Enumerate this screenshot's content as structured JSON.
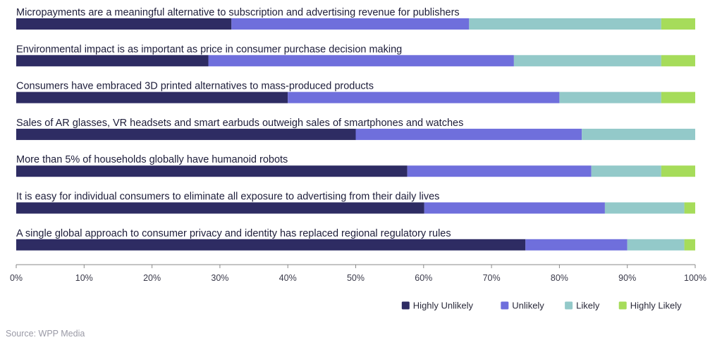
{
  "colors": {
    "highly_unlikely": "#2e2c63",
    "unlikely": "#6f6fdc",
    "likely": "#93c9c9",
    "highly_likely": "#a6dc5a",
    "axis": "#8a8a8a"
  },
  "source_text": "Source: WPP Media",
  "chart_data": {
    "type": "bar",
    "orientation": "horizontal",
    "stacked": true,
    "percent_scale": true,
    "categories": [
      "Micropayments are a meaningful alternative to subscription and advertising revenue for publishers",
      "Environmental impact is as important as price in consumer purchase decision making",
      "Consumers have embraced 3D printed alternatives to mass-produced products",
      "Sales of AR glasses, VR headsets and smart earbuds outweigh sales of smartphones and watches",
      "More than 5% of households globally have humanoid robots",
      "It is easy for individual consumers to eliminate all exposure to advertising from their daily lives",
      "A single global approach to consumer privacy and identity has replaced regional regulatory rules"
    ],
    "series": [
      {
        "name": "Highly Unlikely",
        "color_key": "highly_unlikely",
        "values": [
          31.7,
          28.3,
          40.0,
          50.0,
          57.6,
          60.1,
          75.0
        ]
      },
      {
        "name": "Unlikely",
        "color_key": "unlikely",
        "values": [
          35.0,
          45.0,
          40.0,
          33.3,
          27.1,
          26.6,
          15.0
        ]
      },
      {
        "name": "Likely",
        "color_key": "likely",
        "values": [
          28.3,
          21.7,
          15.0,
          16.7,
          10.3,
          11.7,
          8.4
        ]
      },
      {
        "name": "Highly Likely",
        "color_key": "highly_likely",
        "values": [
          5.0,
          5.0,
          5.0,
          0,
          5.0,
          1.6,
          1.6
        ]
      }
    ],
    "xlim": [
      0,
      100
    ],
    "x_ticks": [
      "0%",
      "10%",
      "20%",
      "30%",
      "40%",
      "50%",
      "60%",
      "70%",
      "80%",
      "90%",
      "100%"
    ],
    "legend": {
      "position": "bottom-right",
      "entries": [
        "Highly Unlikely",
        "Unlikely",
        "Likely",
        "Highly Likely"
      ]
    },
    "grid": false
  }
}
